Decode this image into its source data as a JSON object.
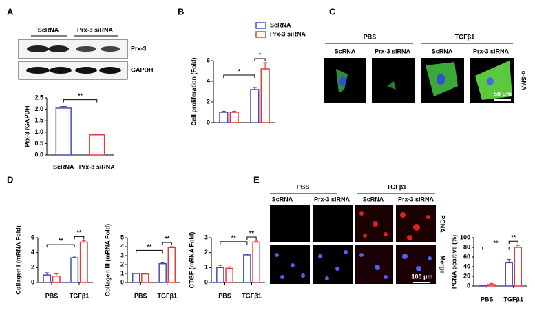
{
  "panel_labels": [
    "A",
    "B",
    "C",
    "D",
    "E"
  ],
  "blot": {
    "lanes": [
      "ScRNA",
      "Prx-3 siRNA"
    ],
    "bands": [
      "Prx-3",
      "GAPDH"
    ]
  },
  "panel_c": {
    "conditions": [
      "PBS",
      "TGFβ1"
    ],
    "groups": [
      "ScRNA",
      "Prx-3 siRNA",
      "ScRNA",
      "Prx-3 siRNA"
    ],
    "stain": "α-SMA",
    "scale_bar": "50 μm"
  },
  "panel_e": {
    "conditions": [
      "PBS",
      "TGFβ1"
    ],
    "groups": [
      "ScRNA",
      "Prx-3 siRNA",
      "ScRNA",
      "Prx-3 siRNA"
    ],
    "rows": [
      "PCNA",
      "Merge"
    ],
    "scale_bar": "100 μm"
  },
  "chart_data": [
    {
      "type": "bar",
      "y_label": "Prx-3 /GAPDH",
      "categories": [
        "ScRNA",
        "Prx-3 siRNA"
      ],
      "values": [
        2.05,
        0.88
      ],
      "errors": [
        0.07,
        0.03
      ],
      "colors": [
        "#3f51b5",
        "#e53935"
      ],
      "ylim": [
        0,
        2.5
      ],
      "yticks": [
        {
          "value": 0,
          "label": "0.0"
        },
        0.5,
        {
          "value": 1,
          "label": "1.0"
        },
        1.5,
        {
          "value": 2,
          "label": "2.0"
        },
        2.5
      ],
      "annotations": [
        {
          "label": "**",
          "color": "#000000"
        }
      ]
    },
    {
      "type": "bar",
      "y_label": "Cell proliferation (Fold)",
      "categories": [
        null,
        null
      ],
      "series": [
        {
          "name": "ScRNA",
          "color": "#3f51b5",
          "values": [
            1.0,
            3.2
          ],
          "errors": [
            0.1,
            0.2
          ]
        },
        {
          "name": "Prx-3 siRNA",
          "color": "#e53935",
          "values": [
            1.0,
            5.2
          ],
          "errors": [
            0.1,
            0.6
          ]
        }
      ],
      "ylim": [
        0,
        6
      ],
      "yticks": [
        0,
        2,
        4,
        6
      ],
      "legend": "top-right",
      "annotations": [
        {
          "label": "*",
          "color": "#000000"
        },
        {
          "label": "*",
          "color": "#1f8fa0"
        }
      ]
    },
    {
      "type": "bar",
      "y_label": "Collagen I (mRNA Fold)",
      "categories": [
        "PBS",
        "TGFβ1"
      ],
      "series": [
        {
          "color": "#3f51b5",
          "values": [
            1.0,
            3.3
          ],
          "errors": [
            0.3,
            0.1
          ]
        },
        {
          "color": "#e53935",
          "values": [
            0.85,
            5.4
          ],
          "errors": [
            0.3,
            0.2
          ]
        }
      ],
      "ylim": [
        0,
        6
      ],
      "yticks": [
        0,
        2,
        4,
        6
      ],
      "annotations": [
        {
          "label": "**",
          "color": "#000000"
        },
        {
          "label": "**",
          "color": "#000000"
        }
      ]
    },
    {
      "type": "bar",
      "y_label": "Collagen III (mRNA Fold)",
      "categories": [
        "PBS",
        "TGFβ1"
      ],
      "series": [
        {
          "color": "#3f51b5",
          "values": [
            1.0,
            2.1
          ],
          "errors": [
            0.03,
            0.1
          ]
        },
        {
          "color": "#e53935",
          "values": [
            0.95,
            3.9
          ],
          "errors": [
            0.08,
            0.1
          ]
        }
      ],
      "ylim": [
        0,
        5
      ],
      "yticks": [
        0,
        1,
        2,
        3,
        4,
        5
      ],
      "annotations": [
        {
          "label": "**",
          "color": "#000000"
        },
        {
          "label": "**",
          "color": "#000000"
        }
      ]
    },
    {
      "type": "bar",
      "y_label": "CTGF (mRNA Fold)",
      "categories": [
        "PBS",
        "TGFβ1"
      ],
      "series": [
        {
          "color": "#3f51b5",
          "values": [
            1.0,
            1.85
          ],
          "errors": [
            0.15,
            0.05
          ]
        },
        {
          "color": "#e53935",
          "values": [
            0.95,
            2.7
          ],
          "errors": [
            0.1,
            0.07
          ]
        }
      ],
      "ylim": [
        0,
        3
      ],
      "yticks": [
        0,
        1,
        2,
        3
      ],
      "annotations": [
        {
          "label": "**",
          "color": "#000000"
        },
        {
          "label": "**",
          "color": "#000000"
        }
      ]
    },
    {
      "type": "bar",
      "y_label": "PCNA positive (%)",
      "categories": [
        "PBS",
        "TGFβ1"
      ],
      "series": [
        {
          "color": "#3f51b5",
          "values": [
            1,
            48
          ],
          "errors": [
            1,
            7
          ]
        },
        {
          "color": "#e53935",
          "values": [
            3,
            80
          ],
          "errors": [
            2,
            4
          ]
        }
      ],
      "ylim": [
        0,
        100
      ],
      "yticks": [
        0,
        20,
        40,
        60,
        80,
        100
      ],
      "annotations": [
        {
          "label": "**",
          "color": "#000000"
        },
        {
          "label": "**",
          "color": "#000000"
        }
      ]
    }
  ]
}
